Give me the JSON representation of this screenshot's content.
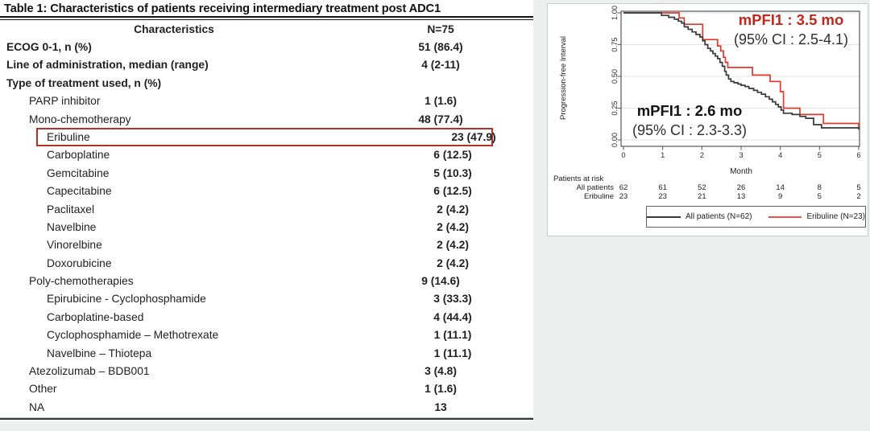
{
  "table": {
    "title": "Table 1: Characteristics of patients receiving intermediary treatment post ADC1",
    "header": {
      "characteristics": "Characteristics",
      "n": "N=75"
    },
    "rows": [
      {
        "label": "ECOG 0-1, n (%)",
        "value": "51 (86.4)",
        "indent": 0,
        "bold": true
      },
      {
        "label": "Line of administration, median (range)",
        "value": "4 (2-11)",
        "indent": 0,
        "bold": true
      },
      {
        "label": "Type of treatment used, n (%)",
        "value": "",
        "indent": 0,
        "bold": true
      },
      {
        "label": "PARP inhibitor",
        "value": "1 (1.6)",
        "indent": 1,
        "bold": false
      },
      {
        "label": "Mono-chemotherapy",
        "value": "48 (77.4)",
        "indent": 1,
        "bold": false
      },
      {
        "label": "Eribuline",
        "value": "23 (47.9)",
        "indent": 2,
        "bold": false,
        "boxed": true
      },
      {
        "label": "Carboplatine",
        "value": "6 (12.5)",
        "indent": 2,
        "bold": false
      },
      {
        "label": "Gemcitabine",
        "value": "5 (10.3)",
        "indent": 2,
        "bold": false
      },
      {
        "label": "Capecitabine",
        "value": "6 (12.5)",
        "indent": 2,
        "bold": false
      },
      {
        "label": "Paclitaxel",
        "value": "2 (4.2)",
        "indent": 2,
        "bold": false
      },
      {
        "label": "Navelbine",
        "value": "2 (4.2)",
        "indent": 2,
        "bold": false
      },
      {
        "label": "Vinorelbine",
        "value": "2 (4.2)",
        "indent": 2,
        "bold": false
      },
      {
        "label": "Doxorubicine",
        "value": "2 (4.2)",
        "indent": 2,
        "bold": false
      },
      {
        "label": "Poly-chemotherapies",
        "value": "9 (14.6)",
        "indent": 1,
        "bold": false
      },
      {
        "label": "Epirubicine - Cyclophosphamide",
        "value": "3 (33.3)",
        "indent": 2,
        "bold": false
      },
      {
        "label": "Carboplatine-based",
        "value": "4 (44.4)",
        "indent": 2,
        "bold": false
      },
      {
        "label": "Cyclophosphamide – Methotrexate",
        "value": "1 (11.1)",
        "indent": 2,
        "bold": false
      },
      {
        "label": "Navelbine – Thiotepa",
        "value": "1 (11.1)",
        "indent": 2,
        "bold": false
      },
      {
        "label": "Atezolizumab – BDB001",
        "value": "3 (4.8)",
        "indent": 1,
        "bold": false
      },
      {
        "label": "Other",
        "value": "1 (1.6)",
        "indent": 1,
        "bold": false
      },
      {
        "label": "NA",
        "value": "13",
        "indent": 1,
        "bold": false
      }
    ]
  },
  "chart_data": {
    "type": "line",
    "subtype": "kaplan-meier-step",
    "xlabel": "Month",
    "ylabel": "Progression-free Interval",
    "xlim": [
      0,
      6
    ],
    "ylim": [
      0,
      1
    ],
    "x_ticks": [
      "0",
      "1",
      "2",
      "3",
      "4",
      "5",
      "6"
    ],
    "x_tick_values": [
      0,
      1,
      2,
      3,
      4,
      5,
      6
    ],
    "y_ticks": [
      "0.00",
      "0.25",
      "0.50",
      "0.75",
      "1.00"
    ],
    "y_tick_values": [
      0,
      0.25,
      0.5,
      0.75,
      1.0
    ],
    "grid": "horizontal",
    "legend_position": "bottom",
    "series": [
      {
        "name": "All patients (N=62)",
        "color": "#383838",
        "steps": [
          [
            0,
            1.0
          ],
          [
            0.97,
            0.98
          ],
          [
            1.15,
            0.965
          ],
          [
            1.3,
            0.95
          ],
          [
            1.4,
            0.935
          ],
          [
            1.48,
            0.92
          ],
          [
            1.55,
            0.89
          ],
          [
            1.65,
            0.87
          ],
          [
            1.75,
            0.85
          ],
          [
            1.85,
            0.83
          ],
          [
            1.95,
            0.81
          ],
          [
            2.02,
            0.78
          ],
          [
            2.08,
            0.75
          ],
          [
            2.15,
            0.72
          ],
          [
            2.22,
            0.7
          ],
          [
            2.28,
            0.68
          ],
          [
            2.34,
            0.66
          ],
          [
            2.4,
            0.64
          ],
          [
            2.46,
            0.61
          ],
          [
            2.52,
            0.58
          ],
          [
            2.58,
            0.54
          ],
          [
            2.62,
            0.51
          ],
          [
            2.68,
            0.48
          ],
          [
            2.74,
            0.46
          ],
          [
            2.82,
            0.45
          ],
          [
            2.92,
            0.44
          ],
          [
            3.0,
            0.43
          ],
          [
            3.1,
            0.42
          ],
          [
            3.2,
            0.405
          ],
          [
            3.32,
            0.39
          ],
          [
            3.42,
            0.375
          ],
          [
            3.52,
            0.36
          ],
          [
            3.62,
            0.34
          ],
          [
            3.72,
            0.32
          ],
          [
            3.8,
            0.3
          ],
          [
            3.88,
            0.28
          ],
          [
            3.95,
            0.26
          ],
          [
            4.02,
            0.235
          ],
          [
            4.08,
            0.21
          ],
          [
            4.3,
            0.2
          ],
          [
            4.5,
            0.185
          ],
          [
            4.65,
            0.17
          ],
          [
            4.85,
            0.12
          ],
          [
            5.05,
            0.095
          ],
          [
            6.0,
            0.085
          ]
        ]
      },
      {
        "name": "Eribuline (N=23)",
        "color": "#e2392c",
        "steps": [
          [
            0,
            1.0
          ],
          [
            1.42,
            0.96
          ],
          [
            1.55,
            0.91
          ],
          [
            2.02,
            0.79
          ],
          [
            2.4,
            0.74
          ],
          [
            2.48,
            0.7
          ],
          [
            2.55,
            0.65
          ],
          [
            2.6,
            0.61
          ],
          [
            2.66,
            0.57
          ],
          [
            3.29,
            0.51
          ],
          [
            3.74,
            0.46
          ],
          [
            4.0,
            0.38
          ],
          [
            4.08,
            0.25
          ],
          [
            4.5,
            0.2
          ],
          [
            5.1,
            0.13
          ],
          [
            6.0,
            0.08
          ]
        ]
      }
    ],
    "annotations": [
      {
        "text": "mPFI1 : 3.5 mo",
        "sub": "(95% CI : 2.5-4.1)",
        "color": "#c6251b",
        "series": "Eribuline"
      },
      {
        "text": "mPFI1 : 2.6 mo",
        "sub": "(95% CI : 2.3-3.3)",
        "color": "#141414",
        "series": "All patients"
      }
    ],
    "risk_table": {
      "title": "Patients at risk",
      "rows": [
        {
          "name": "All patients",
          "values": [
            "62",
            "61",
            "52",
            "26",
            "14",
            "8",
            "5"
          ]
        },
        {
          "name": "Eribuline",
          "values": [
            "23",
            "23",
            "21",
            "13",
            "9",
            "5",
            "2"
          ]
        }
      ]
    }
  }
}
